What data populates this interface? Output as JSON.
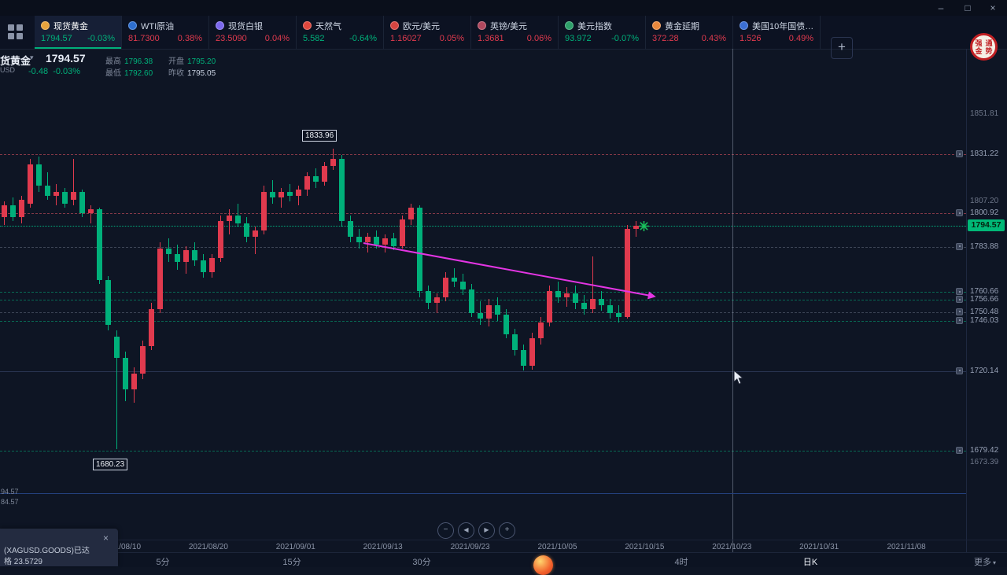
{
  "window": {
    "minimize": "–",
    "maximize": "□",
    "close": "×"
  },
  "topbar": {
    "add_button": "+",
    "logo_chars": "强通金势"
  },
  "tabs": [
    {
      "name": "现货黄金",
      "price": "1794.57",
      "change": "-0.03%",
      "dir": "down",
      "icon_color": "#e8a33d",
      "active": true
    },
    {
      "name": "WTI原油",
      "price": "81.7300",
      "change": "0.38%",
      "dir": "up",
      "icon_color": "#2e6fd0",
      "active": false
    },
    {
      "name": "现货白银",
      "price": "23.5090",
      "change": "0.04%",
      "dir": "up",
      "icon_color": "#7b68ee",
      "active": false
    },
    {
      "name": "天然气",
      "price": "5.582",
      "change": "-0.64%",
      "dir": "down",
      "icon_color": "#e0483e",
      "active": false
    },
    {
      "name": "欧元/美元",
      "price": "1.16027",
      "change": "0.05%",
      "dir": "up",
      "icon_color": "#d64541",
      "active": false
    },
    {
      "name": "英镑/美元",
      "price": "1.3681",
      "change": "0.06%",
      "dir": "up",
      "icon_color": "#b0485e",
      "active": false
    },
    {
      "name": "美元指数",
      "price": "93.972",
      "change": "-0.07%",
      "dir": "down",
      "icon_color": "#2ea06a",
      "active": false
    },
    {
      "name": "黄金延期",
      "price": "372.28",
      "change": "0.43%",
      "dir": "up",
      "icon_color": "#e8883d",
      "active": false
    },
    {
      "name": "美国10年国债…",
      "price": "1.526",
      "change": "0.49%",
      "dir": "up",
      "icon_color": "#3b6fd4",
      "active": false
    }
  ],
  "header": {
    "symbol": "货黄金",
    "caret": "▾",
    "code": "USD",
    "price": "1794.57",
    "change": "-0.48",
    "change_pct": "-0.03%",
    "stats": [
      {
        "label": "最高",
        "value": "1796.38"
      },
      {
        "label": "开盘",
        "value": "1795.20"
      },
      {
        "label": "最低",
        "value": "1792.60"
      },
      {
        "label": "昨收",
        "value": "1795.05"
      }
    ]
  },
  "chart_data": {
    "type": "candlestick",
    "up_color": "#e03a4e",
    "down_color": "#00b07a",
    "current_price": "1794.57",
    "high_annotation": "1833.96",
    "low_annotation": "1680.23",
    "left_scale_labels": [
      "94.57",
      "84.57"
    ],
    "levels": [
      {
        "text": "1851.81",
        "style": "tick"
      },
      {
        "text": "1831.22",
        "style": "red"
      },
      {
        "text": "1807.20",
        "style": "tick"
      },
      {
        "text": "1800.92",
        "style": "red"
      },
      {
        "text": "1794.57",
        "style": "current"
      },
      {
        "text": "1783.88",
        "style": "gray"
      },
      {
        "text": "1760.66",
        "style": "green"
      },
      {
        "text": "1756.66",
        "style": "green"
      },
      {
        "text": "1750.48",
        "style": "gray"
      },
      {
        "text": "1746.03",
        "style": "green"
      },
      {
        "text": "1720.14",
        "style": "solid"
      },
      {
        "text": "1679.42",
        "style": "green"
      },
      {
        "text": "1673.39",
        "style": "tick"
      }
    ],
    "dates": [
      "2021/08/10",
      "2021/08/20",
      "2021/09/01",
      "2021/09/13",
      "2021/09/23",
      "2021/10/05",
      "2021/10/15",
      "2021/10/23",
      "2021/10/31",
      "2021/11/08"
    ],
    "candles": [
      [
        1799,
        1807,
        1795,
        1805
      ],
      [
        1805,
        1809,
        1797,
        1799
      ],
      [
        1799,
        1810,
        1796,
        1808
      ],
      [
        1806,
        1829,
        1804,
        1826
      ],
      [
        1826,
        1830,
        1812,
        1815
      ],
      [
        1815,
        1822,
        1808,
        1810
      ],
      [
        1810,
        1816,
        1805,
        1812
      ],
      [
        1812,
        1814,
        1804,
        1806
      ],
      [
        1808,
        1829,
        1805,
        1812
      ],
      [
        1812,
        1813,
        1799,
        1801
      ],
      [
        1801,
        1805,
        1796,
        1803
      ],
      [
        1803,
        1804,
        1765,
        1767
      ],
      [
        1767,
        1769,
        1741,
        1744
      ],
      [
        1738,
        1741,
        1680.2,
        1727
      ],
      [
        1727,
        1730,
        1705,
        1711
      ],
      [
        1711,
        1722,
        1704,
        1719
      ],
      [
        1719,
        1736,
        1716,
        1733
      ],
      [
        1733,
        1755,
        1731,
        1752
      ],
      [
        1752,
        1786,
        1750,
        1783
      ],
      [
        1783,
        1788,
        1776,
        1780
      ],
      [
        1780,
        1785,
        1772,
        1776
      ],
      [
        1776,
        1784,
        1770,
        1782
      ],
      [
        1782,
        1786,
        1774,
        1777
      ],
      [
        1777,
        1780,
        1768,
        1771
      ],
      [
        1771,
        1780,
        1768,
        1778
      ],
      [
        1778,
        1800,
        1776,
        1797
      ],
      [
        1797,
        1803,
        1790,
        1800
      ],
      [
        1800,
        1806,
        1794,
        1796
      ],
      [
        1796,
        1799,
        1786,
        1789
      ],
      [
        1789,
        1794,
        1780,
        1792
      ],
      [
        1792,
        1815,
        1790,
        1812
      ],
      [
        1812,
        1818,
        1806,
        1809
      ],
      [
        1809,
        1814,
        1804,
        1812
      ],
      [
        1812,
        1816,
        1807,
        1810
      ],
      [
        1810,
        1815,
        1805,
        1813
      ],
      [
        1813,
        1822,
        1810,
        1820
      ],
      [
        1820,
        1824,
        1814,
        1817
      ],
      [
        1817,
        1827,
        1815,
        1825
      ],
      [
        1825,
        1833.96,
        1823,
        1829
      ],
      [
        1829,
        1831,
        1794,
        1797
      ],
      [
        1797,
        1800,
        1786,
        1789
      ],
      [
        1789,
        1793,
        1783,
        1786
      ],
      [
        1786,
        1791,
        1781,
        1789
      ],
      [
        1789,
        1792,
        1783,
        1785
      ],
      [
        1785,
        1790,
        1781,
        1788
      ],
      [
        1788,
        1791,
        1782,
        1784
      ],
      [
        1784,
        1800,
        1783,
        1798
      ],
      [
        1798,
        1806,
        1795,
        1804
      ],
      [
        1804,
        1805,
        1758,
        1761
      ],
      [
        1761,
        1764,
        1752,
        1755
      ],
      [
        1755,
        1760,
        1750,
        1758
      ],
      [
        1758,
        1771,
        1756,
        1768
      ],
      [
        1768,
        1773,
        1763,
        1766
      ],
      [
        1766,
        1770,
        1759,
        1762
      ],
      [
        1762,
        1765,
        1748,
        1750
      ],
      [
        1750,
        1756,
        1744,
        1747
      ],
      [
        1747,
        1757,
        1743,
        1754
      ],
      [
        1754,
        1758,
        1746,
        1749
      ],
      [
        1749,
        1752,
        1737,
        1739
      ],
      [
        1739,
        1742,
        1728,
        1731
      ],
      [
        1731,
        1734,
        1720.5,
        1723
      ],
      [
        1723,
        1740,
        1721,
        1737
      ],
      [
        1737,
        1748,
        1734,
        1745
      ],
      [
        1745,
        1764,
        1743,
        1761
      ],
      [
        1761,
        1766,
        1755,
        1758
      ],
      [
        1758,
        1763,
        1753,
        1760
      ],
      [
        1760,
        1764,
        1752,
        1755
      ],
      [
        1755,
        1759,
        1749,
        1752
      ],
      [
        1752,
        1779,
        1750,
        1757
      ],
      [
        1757,
        1761,
        1751,
        1754
      ],
      [
        1754,
        1757,
        1747,
        1750
      ],
      [
        1750,
        1754,
        1745,
        1748
      ],
      [
        1748,
        1795,
        1747,
        1793
      ],
      [
        1793,
        1797,
        1789,
        1794.57
      ]
    ]
  },
  "footer": {
    "nav_buttons": [
      "−",
      "◀",
      "▶",
      "+"
    ],
    "timeframes": [
      {
        "label": "5分",
        "active": false
      },
      {
        "label": "15分",
        "active": false
      },
      {
        "label": "30分",
        "active": false
      },
      {
        "label": "4时",
        "active": false
      },
      {
        "label": "日K",
        "active": true
      },
      {
        "label": "更多",
        "active": false,
        "caret": "▾"
      }
    ]
  },
  "toast": {
    "line1": "(XAGUSD.GOODS)已达",
    "line2": "格 23.5729",
    "close": "×"
  }
}
